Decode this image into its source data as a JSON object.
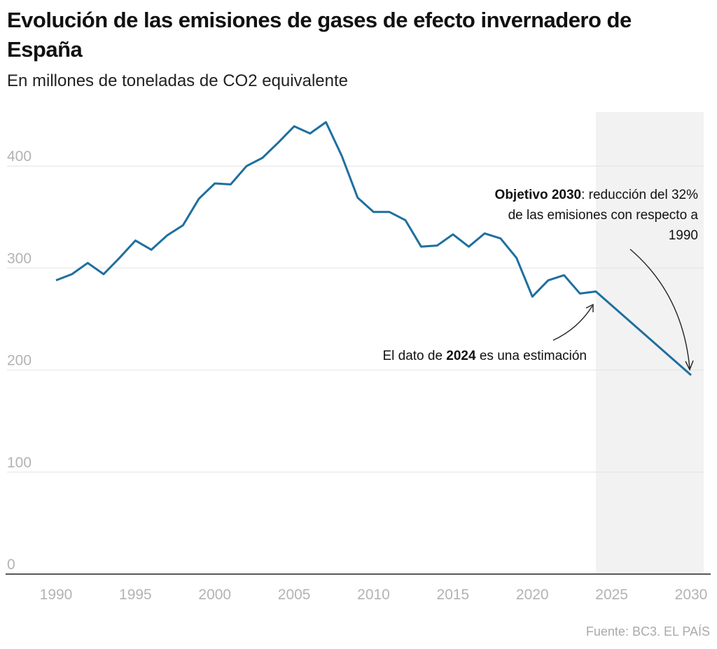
{
  "title": "Evolución de las emisiones de gases de efecto invernadero de España",
  "subtitle": "En millones de toneladas de CO2 equivalente",
  "source": "Fuente: BC3. EL PAÍS",
  "chart_data": {
    "type": "line",
    "title": "Evolución de las emisiones de gases de efecto invernadero de España",
    "subtitle": "En millones de toneladas de CO2 equivalente",
    "xlim": [
      1990,
      2030
    ],
    "ylim": [
      0,
      450
    ],
    "yticks": [
      0,
      100,
      200,
      300,
      400
    ],
    "xticks": [
      1990,
      1995,
      2000,
      2005,
      2010,
      2015,
      2020,
      2025,
      2030
    ],
    "grid": "horizontal",
    "color": "#1f6f9f",
    "shaded_range": [
      2024,
      2030
    ],
    "shade_color": "#f2f2f2",
    "series": [
      {
        "x": [
          1990,
          1991,
          1992,
          1993,
          1994,
          1995,
          1996,
          1997,
          1998,
          1999,
          2000,
          2001,
          2002,
          2003,
          2004,
          2005,
          2006,
          2007,
          2008,
          2009,
          2010,
          2011,
          2012,
          2013,
          2014,
          2015,
          2016,
          2017,
          2018,
          2019,
          2020,
          2021,
          2022,
          2023,
          2024,
          2030
        ],
        "y": [
          288,
          294,
          305,
          294,
          310,
          327,
          318,
          332,
          342,
          368,
          383,
          382,
          400,
          408,
          423,
          439,
          432,
          443,
          410,
          369,
          355,
          355,
          347,
          321,
          322,
          333,
          321,
          334,
          329,
          310,
          272,
          288,
          293,
          275,
          277,
          195
        ]
      }
    ],
    "annotations": [
      {
        "bold": "Objetivo 2030",
        "text": ": reducción del 32%",
        "line2": "de las emisiones con respecto a",
        "line3": "1990",
        "target": [
          2030,
          195
        ]
      },
      {
        "prefix": "El dato de ",
        "bold": "2024",
        "text": " es una estimación",
        "target": [
          2024,
          277
        ]
      }
    ]
  }
}
